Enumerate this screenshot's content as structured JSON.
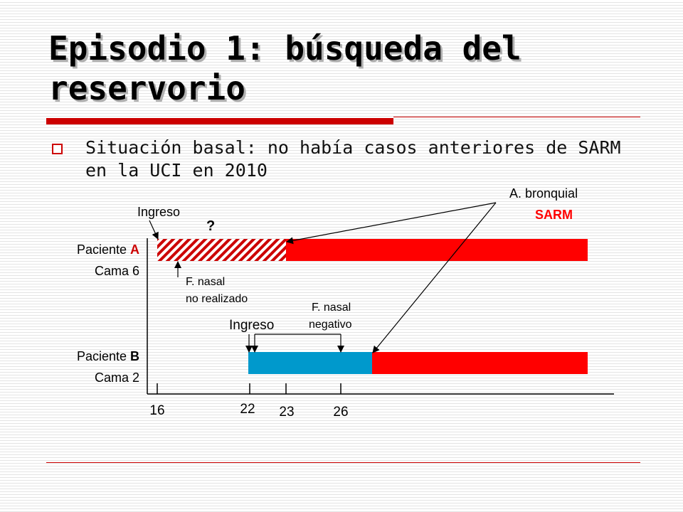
{
  "slide": {
    "title": "Episodio 1: búsqueda del reservorio",
    "bullet": "Situación basal: no había casos anteriores de SARM en la UCI en 2010"
  },
  "diagram": {
    "patient_a": {
      "label": "Paciente ",
      "letter": "A",
      "bed": "Cama 6"
    },
    "patient_b": {
      "label": "Paciente ",
      "letter": "B",
      "bed": "Cama 2"
    },
    "ingreso_a": "Ingreso",
    "question": "?",
    "nasal_a_line1": "F. nasal",
    "nasal_a_line2": "no realizado",
    "ingreso_b": "Ingreso",
    "nasal_b_line1": "F. nasal",
    "nasal_b_line2": "negativo",
    "bronquial_line1": "A.  bronquial",
    "bronquial_line2": "SARM",
    "ticks": [
      "16",
      "22",
      "23",
      "26"
    ]
  },
  "colors": {
    "accent": "#cc0000",
    "sarm": "#ff0000",
    "patient_b_bar": "#0099cc"
  }
}
